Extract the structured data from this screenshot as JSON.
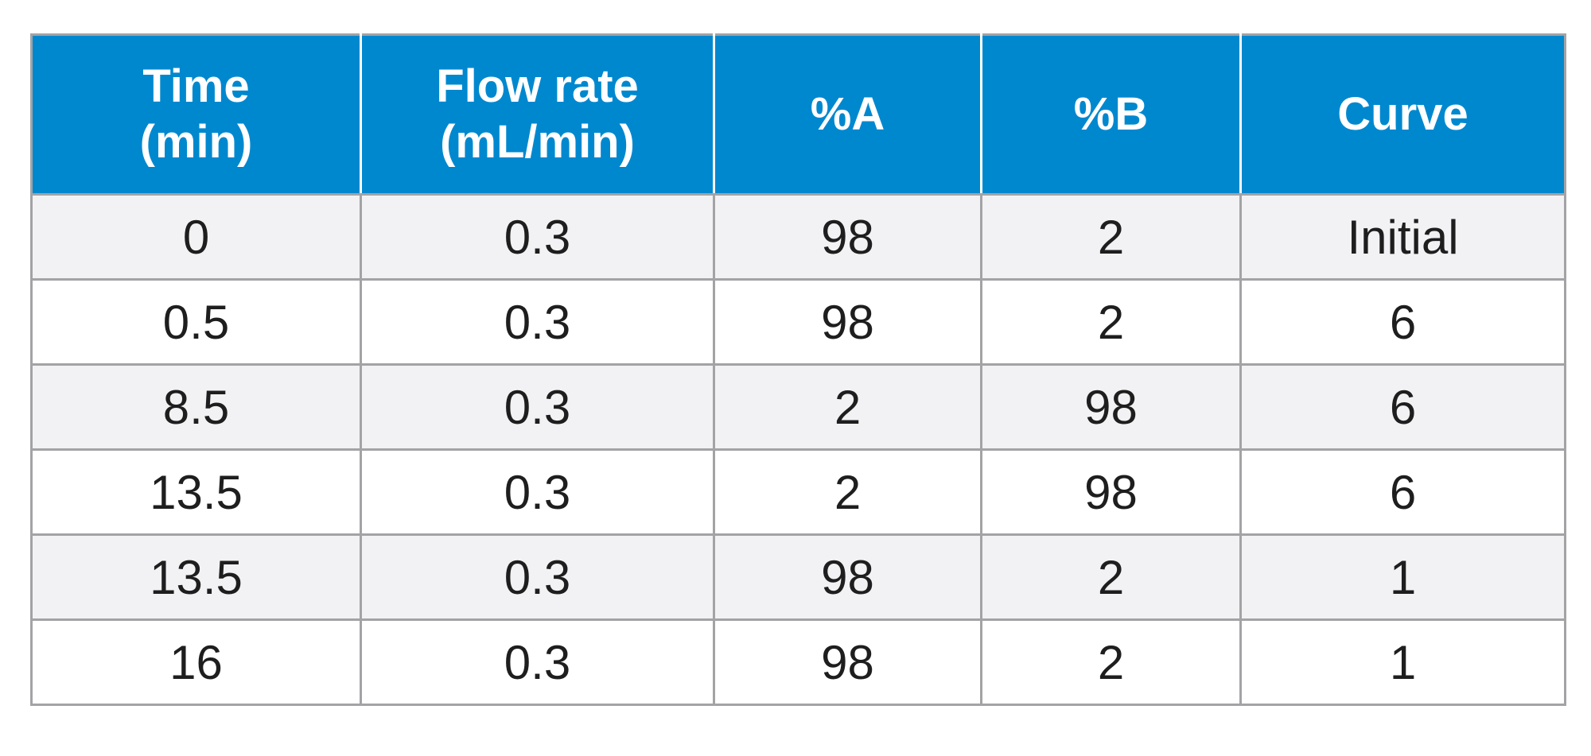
{
  "table": {
    "headers": [
      {
        "lines": [
          "Time",
          "(min)"
        ]
      },
      {
        "lines": [
          "Flow rate",
          "(mL/min)"
        ]
      },
      {
        "lines": [
          "%A"
        ]
      },
      {
        "lines": [
          "%B"
        ]
      },
      {
        "lines": [
          "Curve"
        ]
      }
    ],
    "rows": [
      [
        "0",
        "0.3",
        "98",
        "2",
        "Initial"
      ],
      [
        "0.5",
        "0.3",
        "98",
        "2",
        "6"
      ],
      [
        "8.5",
        "0.3",
        "2",
        "98",
        "6"
      ],
      [
        "13.5",
        "0.3",
        "2",
        "98",
        "6"
      ],
      [
        "13.5",
        "0.3",
        "98",
        "2",
        "1"
      ],
      [
        "16",
        "0.3",
        "98",
        "2",
        "1"
      ]
    ],
    "colors": {
      "header_bg": "#0088cf",
      "header_text": "#ffffff",
      "shaded_row_bg": "#f2f2f4",
      "plain_row_bg": "#ffffff",
      "border": "#a3a3a6",
      "body_text": "#1e1e1e"
    }
  }
}
